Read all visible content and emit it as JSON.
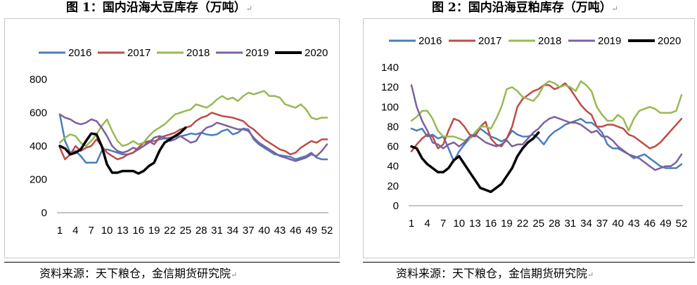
{
  "titles": {
    "left": "图 1：国内沿海大豆库存（万吨）",
    "right": "图 2：国内沿海豆粕库存（万吨）",
    "mark": "↵"
  },
  "sources": {
    "left": "资料来源：天下粮仓，金信期货研究院",
    "right": "资料来源：天下粮仓，金信期货研究院",
    "mark": "↵"
  },
  "colors": {
    "2016": "#4a7ebb",
    "2017": "#be4b48",
    "2018": "#98b954",
    "2019": "#7d60a0",
    "2020": "#000000"
  },
  "chart_data": [
    {
      "type": "line",
      "title": "图 1：国内沿海大豆库存（万吨）",
      "xlabel": "",
      "ylabel": "",
      "x_ticks": [
        "1",
        "4",
        "7",
        "10",
        "13",
        "16",
        "19",
        "22",
        "25",
        "28",
        "31",
        "34",
        "37",
        "40",
        "43",
        "46",
        "49",
        "52"
      ],
      "ylim": [
        0,
        800
      ],
      "y_ticks": [
        0,
        200,
        400,
        600,
        800
      ],
      "legend": "top",
      "grid": false,
      "series": [
        {
          "name": "2016",
          "x": [
            1,
            2,
            3,
            4,
            5,
            6,
            7,
            8,
            9,
            10,
            11,
            12,
            13,
            14,
            15,
            16,
            17,
            18,
            19,
            20,
            21,
            22,
            23,
            24,
            25,
            26,
            27,
            28,
            29,
            30,
            31,
            32,
            33,
            34,
            35,
            36,
            37,
            38,
            39,
            40,
            41,
            42,
            43,
            44,
            45,
            46,
            47,
            48,
            49,
            50,
            51,
            52
          ],
          "values": [
            590,
            430,
            360,
            370,
            340,
            300,
            300,
            300,
            370,
            380,
            370,
            360,
            350,
            350,
            360,
            380,
            400,
            430,
            430,
            440,
            445,
            450,
            455,
            460,
            465,
            475,
            470,
            480,
            470,
            465,
            470,
            490,
            500,
            470,
            480,
            505,
            500,
            440,
            410,
            390,
            370,
            350,
            345,
            340,
            335,
            320,
            330,
            340,
            360,
            330,
            320,
            320
          ]
        },
        {
          "name": "2017",
          "x": [
            1,
            2,
            3,
            4,
            5,
            6,
            7,
            8,
            9,
            10,
            11,
            12,
            13,
            14,
            15,
            16,
            17,
            18,
            19,
            20,
            21,
            22,
            23,
            24,
            25,
            26,
            27,
            28,
            29,
            30,
            31,
            32,
            33,
            34,
            35,
            36,
            37,
            38,
            39,
            40,
            41,
            42,
            43,
            44,
            45,
            46,
            47,
            48,
            49,
            50,
            51,
            52
          ],
          "values": [
            390,
            320,
            350,
            400,
            370,
            390,
            400,
            440,
            400,
            360,
            340,
            320,
            330,
            350,
            360,
            390,
            420,
            430,
            410,
            450,
            460,
            470,
            480,
            500,
            510,
            520,
            550,
            570,
            580,
            600,
            590,
            580,
            575,
            570,
            560,
            550,
            520,
            500,
            470,
            440,
            420,
            400,
            380,
            370,
            350,
            360,
            390,
            410,
            430,
            420,
            440,
            440
          ]
        },
        {
          "name": "2018",
          "x": [
            1,
            2,
            3,
            4,
            5,
            6,
            7,
            8,
            9,
            10,
            11,
            12,
            13,
            14,
            15,
            16,
            17,
            18,
            19,
            20,
            21,
            22,
            23,
            24,
            25,
            26,
            27,
            28,
            29,
            30,
            31,
            32,
            33,
            34,
            35,
            36,
            37,
            38,
            39,
            40,
            41,
            42,
            43,
            44,
            45,
            46,
            47,
            48,
            49,
            50,
            51,
            52
          ],
          "values": [
            420,
            450,
            470,
            460,
            420,
            400,
            430,
            470,
            520,
            560,
            490,
            430,
            400,
            410,
            430,
            410,
            420,
            460,
            490,
            510,
            530,
            560,
            590,
            600,
            610,
            620,
            650,
            640,
            630,
            650,
            680,
            700,
            680,
            690,
            670,
            700,
            720,
            710,
            720,
            730,
            700,
            700,
            690,
            650,
            640,
            630,
            650,
            620,
            570,
            560,
            570,
            570
          ]
        },
        {
          "name": "2019",
          "x": [
            1,
            2,
            3,
            4,
            5,
            6,
            7,
            8,
            9,
            10,
            11,
            12,
            13,
            14,
            15,
            16,
            17,
            18,
            19,
            20,
            21,
            22,
            23,
            24,
            25,
            26,
            27,
            28,
            29,
            30,
            31,
            32,
            33,
            34,
            35,
            36,
            37,
            38,
            39,
            40,
            41,
            42,
            43,
            44,
            45,
            46,
            47,
            48,
            49,
            50,
            51,
            52
          ],
          "values": [
            590,
            570,
            560,
            540,
            530,
            540,
            560,
            550,
            510,
            460,
            400,
            370,
            360,
            370,
            390,
            380,
            400,
            420,
            450,
            460,
            450,
            430,
            440,
            460,
            440,
            420,
            430,
            480,
            510,
            520,
            540,
            530,
            520,
            510,
            500,
            500,
            490,
            450,
            420,
            400,
            380,
            360,
            340,
            330,
            320,
            310,
            320,
            330,
            350,
            340,
            370,
            410
          ]
        },
        {
          "name": "2020",
          "x": [
            1,
            2,
            3,
            4,
            5,
            6,
            7,
            8,
            9,
            10,
            11,
            12,
            13,
            14,
            15,
            16,
            17,
            18,
            19,
            20,
            21,
            22,
            23,
            24,
            25
          ],
          "values": [
            400,
            385,
            350,
            360,
            380,
            430,
            475,
            470,
            400,
            290,
            240,
            240,
            250,
            250,
            250,
            235,
            250,
            280,
            300,
            370,
            420,
            440,
            460,
            480,
            510
          ]
        }
      ]
    },
    {
      "type": "line",
      "title": "图 2：国内沿海豆粕库存（万吨）",
      "xlabel": "",
      "ylabel": "",
      "x_ticks": [
        "1",
        "4",
        "7",
        "10",
        "13",
        "16",
        "19",
        "22",
        "25",
        "28",
        "31",
        "34",
        "37",
        "40",
        "43",
        "46",
        "49",
        "52"
      ],
      "ylim": [
        0,
        140
      ],
      "y_ticks": [
        0,
        20,
        40,
        60,
        80,
        100,
        120,
        140
      ],
      "legend": "top",
      "grid": false,
      "series": [
        {
          "name": "2016",
          "x": [
            1,
            2,
            3,
            4,
            5,
            6,
            7,
            8,
            9,
            10,
            11,
            12,
            13,
            14,
            15,
            16,
            17,
            18,
            19,
            20,
            21,
            22,
            23,
            24,
            25,
            26,
            27,
            28,
            29,
            30,
            31,
            32,
            33,
            34,
            35,
            36,
            37,
            38,
            39,
            40,
            41,
            42,
            43,
            44,
            45,
            46,
            47,
            48,
            49,
            50,
            51,
            52
          ],
          "values": [
            78,
            76,
            78,
            70,
            72,
            68,
            70,
            58,
            45,
            55,
            62,
            68,
            72,
            78,
            74,
            70,
            68,
            65,
            68,
            76,
            72,
            70,
            70,
            72,
            68,
            62,
            70,
            75,
            78,
            82,
            84,
            86,
            88,
            84,
            84,
            80,
            74,
            62,
            58,
            58,
            55,
            52,
            48,
            50,
            52,
            48,
            44,
            40,
            38,
            38,
            38,
            42
          ]
        },
        {
          "name": "2017",
          "x": [
            1,
            2,
            3,
            4,
            5,
            6,
            7,
            8,
            9,
            10,
            11,
            12,
            13,
            14,
            15,
            16,
            17,
            18,
            19,
            20,
            21,
            22,
            23,
            24,
            25,
            26,
            27,
            28,
            29,
            30,
            31,
            32,
            33,
            34,
            35,
            36,
            37,
            38,
            39,
            40,
            41,
            42,
            43,
            44,
            45,
            46,
            47,
            48,
            49,
            50,
            51,
            52
          ],
          "values": [
            55,
            62,
            68,
            72,
            70,
            58,
            62,
            76,
            88,
            86,
            80,
            72,
            70,
            80,
            85,
            68,
            62,
            60,
            68,
            80,
            100,
            108,
            112,
            116,
            118,
            122,
            122,
            118,
            120,
            124,
            118,
            110,
            102,
            96,
            92,
            80,
            80,
            82,
            82,
            80,
            78,
            72,
            70,
            66,
            62,
            58,
            60,
            64,
            70,
            76,
            82,
            88
          ]
        },
        {
          "name": "2018",
          "x": [
            1,
            2,
            3,
            4,
            5,
            6,
            7,
            8,
            9,
            10,
            11,
            12,
            13,
            14,
            15,
            16,
            17,
            18,
            19,
            20,
            21,
            22,
            23,
            24,
            25,
            26,
            27,
            28,
            29,
            30,
            31,
            32,
            33,
            34,
            35,
            36,
            37,
            38,
            39,
            40,
            41,
            42,
            43,
            44,
            45,
            46,
            47,
            48,
            49,
            50,
            51,
            52
          ],
          "values": [
            86,
            90,
            96,
            96,
            88,
            76,
            70,
            70,
            70,
            68,
            66,
            68,
            74,
            80,
            80,
            78,
            88,
            100,
            118,
            120,
            116,
            110,
            108,
            106,
            112,
            122,
            126,
            124,
            120,
            122,
            120,
            116,
            126,
            122,
            116,
            100,
            92,
            86,
            86,
            92,
            88,
            76,
            88,
            96,
            98,
            100,
            98,
            94,
            94,
            94,
            96,
            112
          ]
        },
        {
          "name": "2019",
          "x": [
            1,
            2,
            3,
            4,
            5,
            6,
            7,
            8,
            9,
            10,
            11,
            12,
            13,
            14,
            15,
            16,
            17,
            18,
            19,
            20,
            21,
            22,
            23,
            24,
            25,
            26,
            27,
            28,
            29,
            30,
            31,
            32,
            33,
            34,
            35,
            36,
            37,
            38,
            39,
            40,
            41,
            42,
            43,
            44,
            45,
            46,
            47,
            48,
            49,
            50,
            51,
            52
          ],
          "values": [
            122,
            100,
            86,
            76,
            64,
            62,
            58,
            62,
            64,
            60,
            64,
            70,
            72,
            68,
            64,
            62,
            60,
            62,
            66,
            60,
            62,
            62,
            68,
            74,
            78,
            84,
            88,
            90,
            88,
            86,
            84,
            84,
            82,
            78,
            74,
            76,
            70,
            70,
            66,
            60,
            56,
            52,
            50,
            48,
            44,
            40,
            36,
            38,
            40,
            40,
            44,
            52
          ]
        },
        {
          "name": "2020",
          "x": [
            1,
            2,
            3,
            4,
            5,
            6,
            7,
            8,
            9,
            10,
            11,
            12,
            13,
            14,
            15,
            16,
            17,
            18,
            19,
            20,
            21,
            22,
            23,
            24,
            25
          ],
          "values": [
            60,
            58,
            48,
            42,
            38,
            34,
            34,
            38,
            46,
            50,
            42,
            34,
            26,
            18,
            16,
            14,
            18,
            22,
            30,
            38,
            50,
            58,
            64,
            68,
            74
          ]
        }
      ]
    }
  ]
}
